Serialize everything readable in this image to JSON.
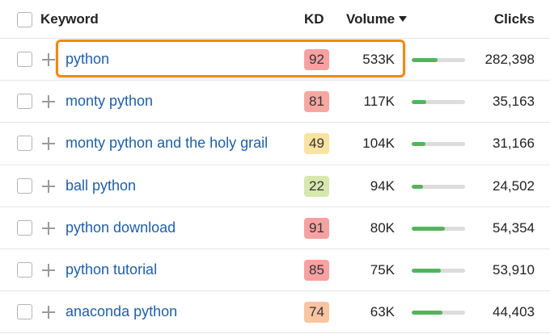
{
  "header": {
    "keyword_label": "Keyword",
    "kd_label": "KD",
    "volume_label": "Volume",
    "clicks_label": "Clicks"
  },
  "colors": {
    "link": "#1f5fa8",
    "highlight": "#f28a0b",
    "bar_fill": "#53b45d",
    "bar_track": "#dcdcdc"
  },
  "rows": [
    {
      "keyword": "python",
      "kd": "92",
      "kd_color": "#f7a1a1",
      "volume": "533K",
      "trend_fill": 0.48,
      "clicks": "282,398"
    },
    {
      "keyword": "monty python",
      "kd": "81",
      "kd_color": "#f7a7a1",
      "volume": "117K",
      "trend_fill": 0.27,
      "clicks": "35,163"
    },
    {
      "keyword": "monty python and the holy grail",
      "kd": "49",
      "kd_color": "#f9e3a0",
      "volume": "104K",
      "trend_fill": 0.26,
      "clicks": "31,166"
    },
    {
      "keyword": "ball python",
      "kd": "22",
      "kd_color": "#d6e8ad",
      "volume": "94K",
      "trend_fill": 0.21,
      "clicks": "24,502"
    },
    {
      "keyword": "python download",
      "kd": "91",
      "kd_color": "#f7a1a1",
      "volume": "80K",
      "trend_fill": 0.62,
      "clicks": "54,354"
    },
    {
      "keyword": "python tutorial",
      "kd": "85",
      "kd_color": "#f7a1a1",
      "volume": "75K",
      "trend_fill": 0.55,
      "clicks": "53,910"
    },
    {
      "keyword": "anaconda python",
      "kd": "74",
      "kd_color": "#f9c4a0",
      "volume": "63K",
      "trend_fill": 0.58,
      "clicks": "44,403"
    }
  ]
}
